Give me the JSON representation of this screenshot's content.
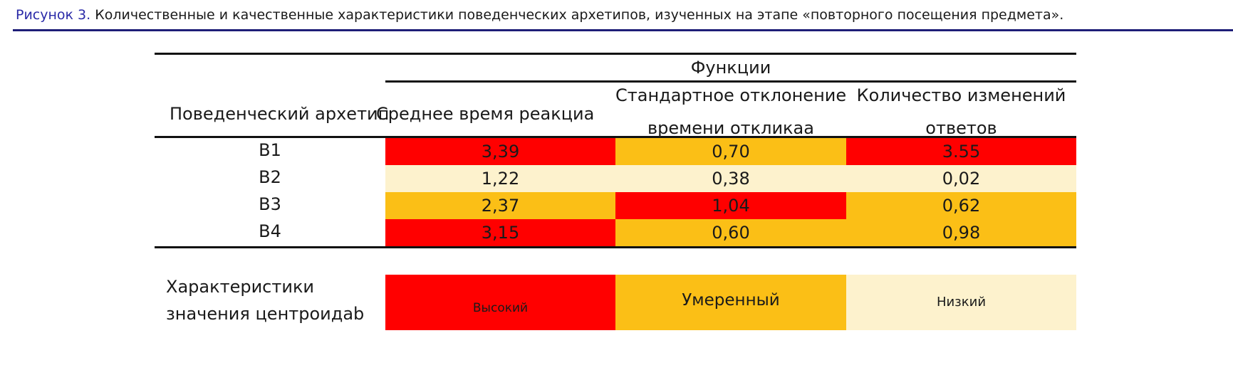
{
  "caption": {
    "figure": "Рисунок 3.",
    "text": "Количественные и качественные характеристики поведенческих архетипов, изученных на этапе «повторного посещения предмета»."
  },
  "table": {
    "group_header": "Функции",
    "row_header": "Поведенческий архетип",
    "columns": [
      {
        "line1": "Среднее время реакциа"
      },
      {
        "line1": "Стандартное отклонение",
        "line2": "времени откликаа"
      },
      {
        "line1": "Количество изменений",
        "line2": "ответов"
      }
    ],
    "rows": [
      {
        "label": "B1",
        "values": [
          "3,39",
          "0,70",
          "3.55"
        ],
        "levels": [
          "high",
          "mid",
          "high"
        ]
      },
      {
        "label": "B2",
        "values": [
          "1,22",
          "0,38",
          "0,02"
        ],
        "levels": [
          "low",
          "low",
          "low"
        ]
      },
      {
        "label": "B3",
        "values": [
          "2,37",
          "1,04",
          "0,62"
        ],
        "levels": [
          "mid",
          "high",
          "mid"
        ]
      },
      {
        "label": "B4",
        "values": [
          "3,15",
          "0,60",
          "0,98"
        ],
        "levels": [
          "high",
          "mid",
          "mid"
        ]
      }
    ]
  },
  "legend": {
    "label_line1": "Характеристики",
    "label_line2": "значения центроидab",
    "items": [
      {
        "label": "Высокий",
        "level": "high"
      },
      {
        "label": "Умеренный",
        "level": "mid"
      },
      {
        "label": "Низкий",
        "level": "low"
      }
    ]
  },
  "colors": {
    "high": "#ff0000",
    "mid": "#fbbf16",
    "low": "#fdf2cd",
    "caption_accent": "#2a2aa8",
    "rule": "#1e1e78"
  }
}
